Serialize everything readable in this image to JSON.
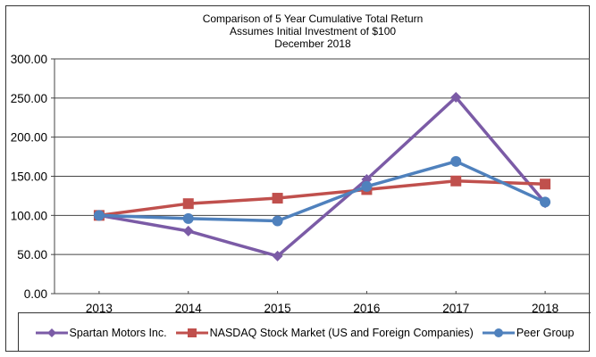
{
  "chart_data": {
    "type": "line",
    "title": [
      "Comparison of 5 Year Cumulative Total Return",
      "Assumes Initial Investment of $100",
      "December 2018"
    ],
    "xlabel": "",
    "ylabel": "",
    "categories": [
      "2013",
      "2014",
      "2015",
      "2016",
      "2017",
      "2018"
    ],
    "ylim": [
      0,
      300
    ],
    "yticks": [
      0,
      50,
      100,
      150,
      200,
      250,
      300
    ],
    "ytick_labels": [
      "0.00",
      "50.00",
      "100.00",
      "150.00",
      "200.00",
      "250.00",
      "300.00"
    ],
    "grid": true,
    "legend_position": "bottom",
    "series": [
      {
        "name": "Spartan Motors Inc.",
        "color": "#7B5BA6",
        "marker": "diamond",
        "values": [
          100,
          80,
          48,
          146,
          251,
          116
        ]
      },
      {
        "name": "NASDAQ Stock Market (US and Foreign Companies)",
        "color": "#C0504D",
        "marker": "square",
        "values": [
          100,
          115,
          122,
          133,
          144,
          140
        ]
      },
      {
        "name": "Peer Group",
        "color": "#4F81BD",
        "marker": "circle",
        "values": [
          100,
          96,
          93,
          137,
          169,
          117
        ]
      }
    ]
  }
}
